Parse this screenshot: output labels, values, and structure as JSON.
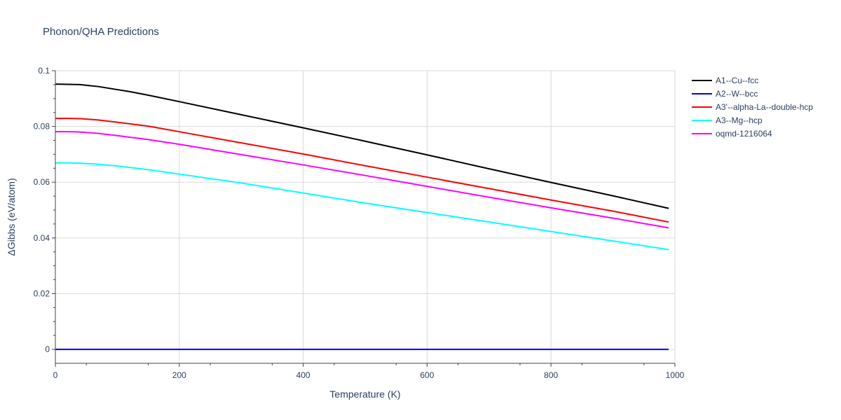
{
  "chart_data": {
    "type": "line",
    "title": "Phonon/QHA Predictions",
    "xlabel": "Temperature (K)",
    "ylabel": "ΔGibbs (eV/atom)",
    "xlim": [
      0,
      1000
    ],
    "ylim": [
      -0.005,
      0.1
    ],
    "xticks": [
      0,
      200,
      400,
      600,
      800,
      1000
    ],
    "xtick_labels": [
      "0",
      "200",
      "400",
      "600",
      "800",
      "1000"
    ],
    "yticks": [
      0,
      0.02,
      0.04,
      0.06,
      0.08,
      0.1
    ],
    "ytick_labels": [
      "0",
      "0.02",
      "0.04",
      "0.06",
      "0.08",
      "0.1"
    ],
    "grid": true,
    "legend_position": "top-right",
    "series": [
      {
        "name": "A1--Cu--fcc",
        "color": "#000000",
        "x": [
          0,
          20,
          40,
          70,
          100,
          120,
          150,
          200,
          300,
          400,
          500,
          600,
          700,
          800,
          900,
          990
        ],
        "y": [
          0.0952,
          0.0951,
          0.095,
          0.0943,
          0.0932,
          0.0925,
          0.0912,
          0.0889,
          0.0842,
          0.0795,
          0.0747,
          0.0698,
          0.0648,
          0.0599,
          0.0551,
          0.0506
        ]
      },
      {
        "name": "A2--W--bcc",
        "color": "#0000ff",
        "x": [
          0,
          200,
          400,
          600,
          800,
          990
        ],
        "y": [
          0,
          0,
          0,
          0,
          0,
          0
        ]
      },
      {
        "name": "A3'--alpha-La--double-hcp",
        "color": "#ff0000",
        "x": [
          0,
          20,
          40,
          70,
          100,
          150,
          200,
          300,
          400,
          500,
          600,
          700,
          800,
          900,
          990
        ],
        "y": [
          0.0829,
          0.0829,
          0.0828,
          0.0823,
          0.0815,
          0.0801,
          0.0781,
          0.0741,
          0.0701,
          0.0659,
          0.0618,
          0.0577,
          0.0536,
          0.0496,
          0.0457
        ]
      },
      {
        "name": "A3--Mg--hcp",
        "color": "#00ffff",
        "x": [
          0,
          20,
          40,
          70,
          100,
          150,
          200,
          300,
          400,
          500,
          600,
          700,
          800,
          900,
          990
        ],
        "y": [
          0.0669,
          0.0669,
          0.0668,
          0.0664,
          0.0658,
          0.0645,
          0.0629,
          0.0597,
          0.0561,
          0.0525,
          0.0491,
          0.0457,
          0.0423,
          0.0389,
          0.0358
        ]
      },
      {
        "name": "oqmd-1216064",
        "color": "#ff00ff",
        "x": [
          0,
          20,
          40,
          70,
          100,
          150,
          200,
          300,
          400,
          500,
          600,
          700,
          800,
          900,
          990
        ],
        "y": [
          0.0781,
          0.0781,
          0.078,
          0.0775,
          0.0767,
          0.0753,
          0.0736,
          0.0699,
          0.0662,
          0.0624,
          0.0585,
          0.0546,
          0.0508,
          0.0471,
          0.0436
        ]
      }
    ]
  }
}
